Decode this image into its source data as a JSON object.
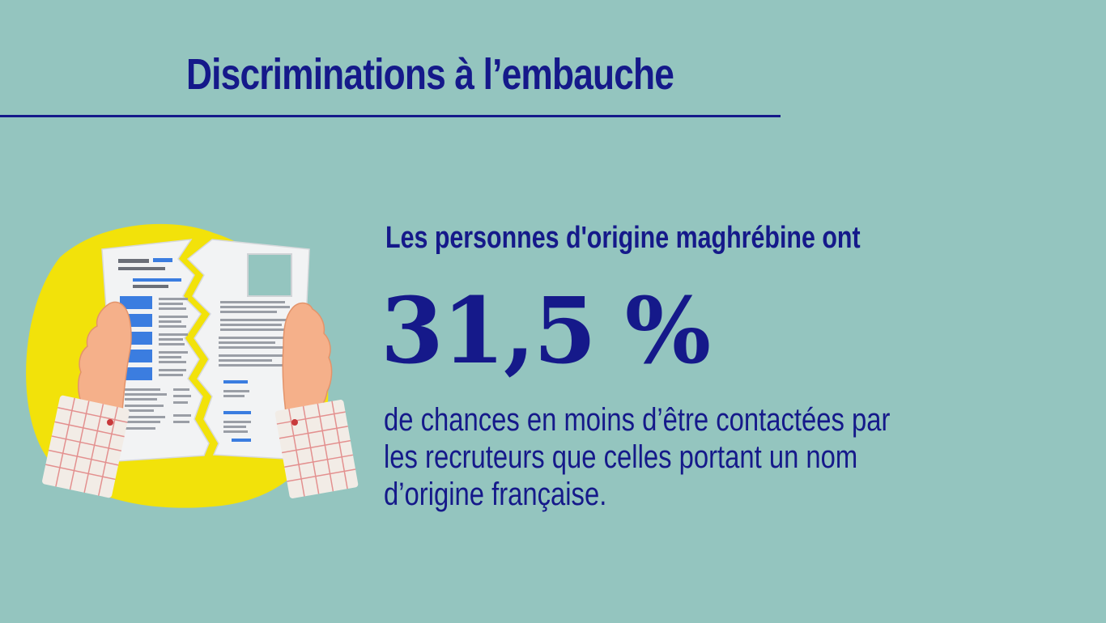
{
  "title": "Discriminations à l’embauche",
  "lead": "Les personnes d'origine maghrébine ont",
  "stat": "31,5 %",
  "description": {
    "line1": "de chances en moins d’être contactées par",
    "line2": "les recruteurs que celles portant un nom",
    "line3": "d’origine française."
  },
  "colors": {
    "background": "#94c5bf",
    "text": "#15198a",
    "blob": "#f2e20a",
    "paper": "#f2f3f4",
    "cv_blue": "#3b7de0",
    "skin": "#f5b08a",
    "sleeve_red": "#c8393b"
  },
  "illustration": {
    "icon": "torn-cv-icon"
  }
}
